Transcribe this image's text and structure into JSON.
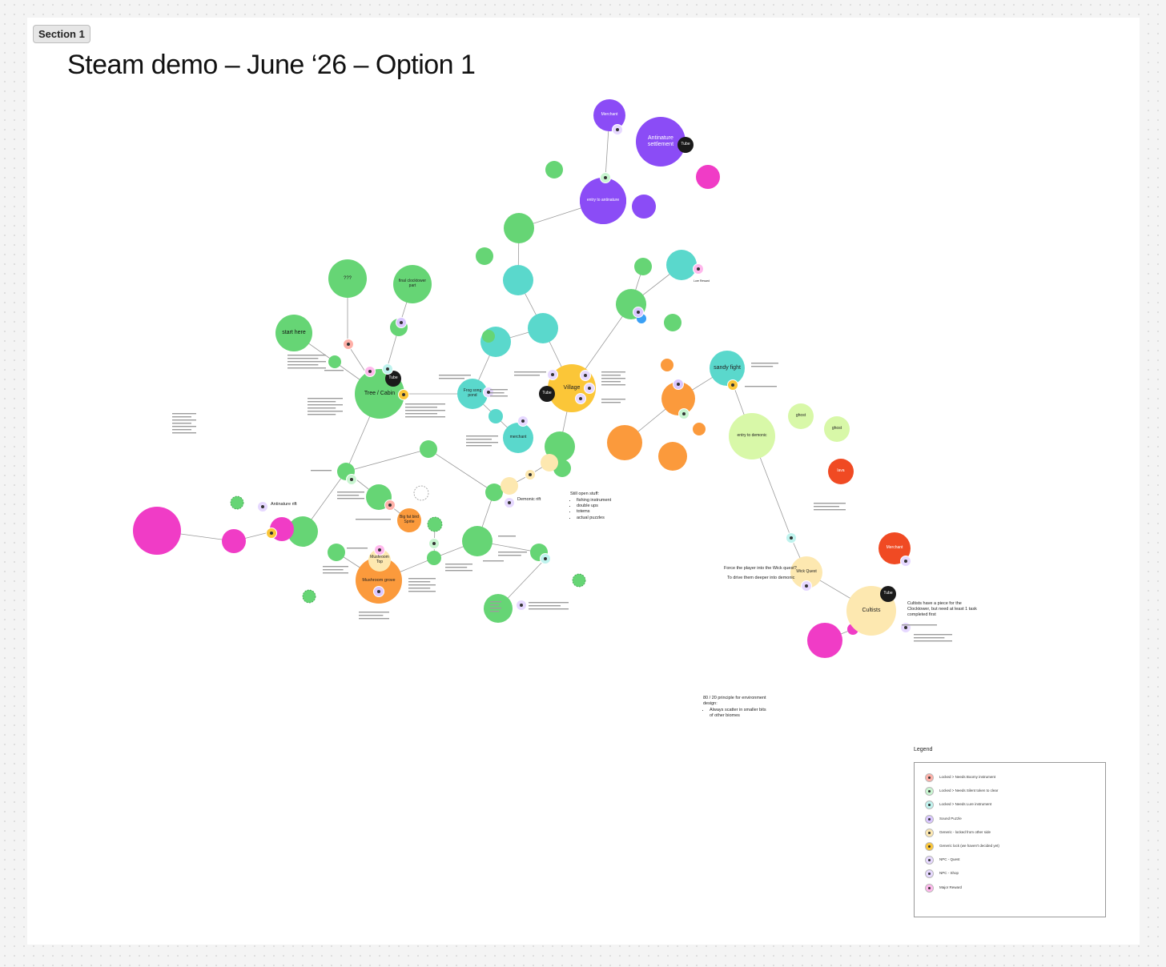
{
  "section_label": "Section 1",
  "title": "Steam demo – June ‘26 – Option 1",
  "nodes": [
    "Merchant",
    "Antinature settlement",
    "Tube",
    "entry to antinature",
    "???",
    "final clocktower part",
    "start here",
    "Tree / Cabin",
    "Tube",
    "Frog song pond",
    "Village",
    "Tube",
    "merchant",
    "sandy fight",
    "entry to demonic",
    "ghost",
    "ghost",
    "lava",
    "Merchant",
    "Wick Quest",
    "Cultists",
    "Tube",
    "Big fat bird Sprite",
    "Mushroom Top",
    "Mushroom grove"
  ],
  "notes": [
    {
      "text": "Antinature rift"
    },
    {
      "text": "Demonic rift"
    },
    {
      "text": "Still open stuff:",
      "items": [
        "fishing instrument",
        "double ups",
        "totems",
        "actual puzzles"
      ]
    },
    {
      "text": "Force the player into the Wick quest?"
    },
    {
      "text": "To drive them deeper into demonic"
    },
    {
      "text": "Cultists have a piece for the Clocktower, but need at least 1 task completed first"
    },
    {
      "text": "80 / 20 principle for environment design:",
      "items": [
        "Always scatter in smaller bits of other biomes"
      ]
    },
    {
      "text": "Lure Reward"
    }
  ],
  "legend": {
    "title": "Legend",
    "items": [
      "Locked > Needs Boomy instrument",
      "Locked > Needs Silent token to clear",
      "Locked > Needs Lure instrument",
      "Sound Puzzle",
      "Generic - locked from other side",
      "Generic lock (we haven't decided yet)",
      "NPC - Quest",
      "NPC - Shop",
      "Major Reward"
    ]
  }
}
